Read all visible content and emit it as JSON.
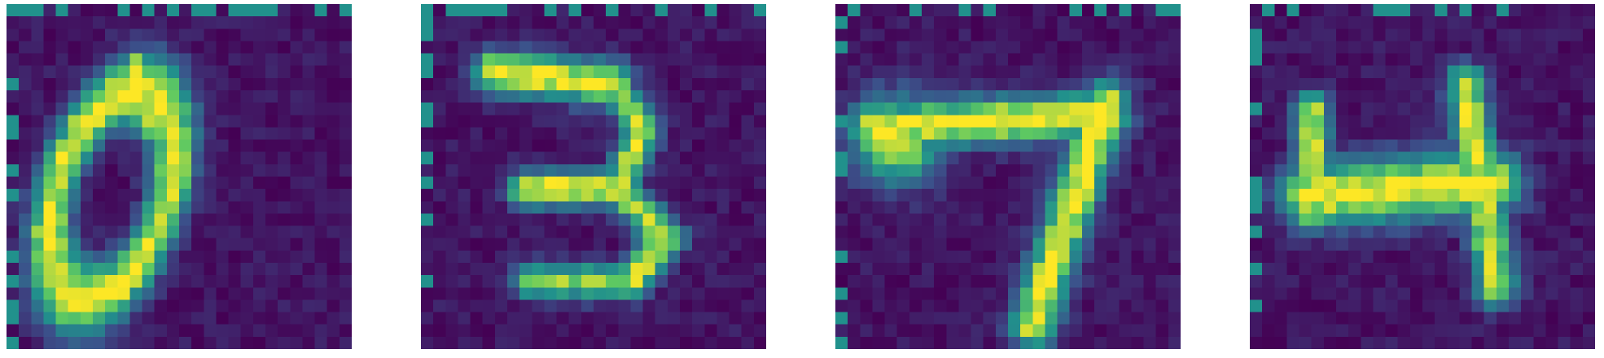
{
  "figure": {
    "grid_size": 28,
    "colormap": [
      "#440154",
      "#3b528b",
      "#21918c",
      "#5ec962",
      "#fde725"
    ],
    "panels": [
      {
        "name": "digit-0",
        "blobs": [
          {
            "type": "ring",
            "cx": 8.5,
            "cy": 15.5,
            "rx": 4.5,
            "ry": 8.8,
            "angle": 18,
            "w": 1.1,
            "amp": 1.0
          },
          {
            "type": "seg",
            "x1": 10.5,
            "y1": 5.0,
            "x2": 11.6,
            "y2": 10.0,
            "w": 0.9,
            "amp": 0.95
          }
        ]
      },
      {
        "name": "digit-3",
        "blobs": [
          {
            "type": "seg",
            "x1": 6.0,
            "y1": 5.5,
            "x2": 15.5,
            "y2": 6.5,
            "w": 1.2,
            "amp": 1.0
          },
          {
            "type": "seg",
            "x1": 15.5,
            "y1": 6.5,
            "x2": 18.0,
            "y2": 10.0,
            "w": 1.0,
            "amp": 0.9
          },
          {
            "type": "seg",
            "x1": 18.0,
            "y1": 10.0,
            "x2": 16.0,
            "y2": 15.0,
            "w": 1.0,
            "amp": 0.95
          },
          {
            "type": "seg",
            "x1": 8.5,
            "y1": 15.0,
            "x2": 16.0,
            "y2": 15.0,
            "w": 1.0,
            "amp": 1.0
          },
          {
            "type": "seg",
            "x1": 16.0,
            "y1": 15.0,
            "x2": 20.0,
            "y2": 19.0,
            "w": 1.0,
            "amp": 0.9
          },
          {
            "type": "seg",
            "x1": 20.0,
            "y1": 19.0,
            "x2": 17.0,
            "y2": 22.5,
            "w": 1.0,
            "amp": 0.95
          },
          {
            "type": "seg",
            "x1": 9.0,
            "y1": 22.5,
            "x2": 17.0,
            "y2": 22.5,
            "w": 1.0,
            "amp": 0.8
          }
        ]
      },
      {
        "name": "digit-7",
        "blobs": [
          {
            "type": "seg",
            "x1": 3.0,
            "y1": 10.0,
            "x2": 22.0,
            "y2": 9.0,
            "w": 1.3,
            "amp": 1.0
          },
          {
            "type": "dot",
            "cx": 5.0,
            "cy": 11.0,
            "r": 2.4,
            "amp": 1.0
          },
          {
            "type": "seg",
            "x1": 22.0,
            "y1": 8.0,
            "x2": 16.0,
            "y2": 26.0,
            "w": 1.3,
            "amp": 1.0
          }
        ]
      },
      {
        "name": "digit-4",
        "blobs": [
          {
            "type": "seg",
            "x1": 5.0,
            "y1": 8.5,
            "x2": 5.0,
            "y2": 17.0,
            "w": 1.0,
            "amp": 0.95
          },
          {
            "type": "seg",
            "x1": 5.0,
            "y1": 15.5,
            "x2": 19.5,
            "y2": 14.5,
            "w": 1.8,
            "amp": 1.0
          },
          {
            "type": "seg",
            "x1": 17.5,
            "y1": 6.5,
            "x2": 20.0,
            "y2": 23.0,
            "w": 1.1,
            "amp": 0.95
          }
        ]
      }
    ]
  }
}
